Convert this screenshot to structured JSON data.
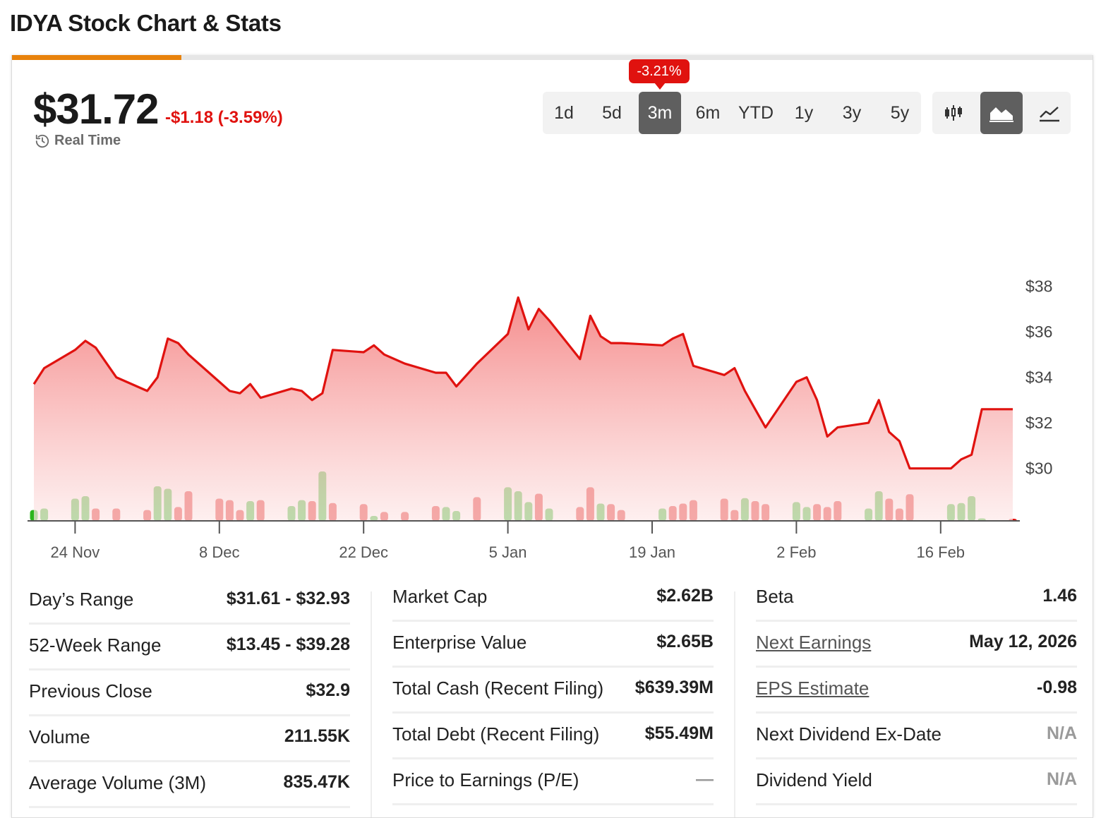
{
  "page_title": "IDYA Stock Chart & Stats",
  "quote": {
    "price": "$31.72",
    "change": "-$1.18 (-3.59%)",
    "realtime_label": "Real Time",
    "period_change_badge": "-3.21%"
  },
  "ranges": [
    "1d",
    "5d",
    "3m",
    "6m",
    "YTD",
    "1y",
    "3y",
    "5y"
  ],
  "active_range": "3m",
  "chart_types": [
    "candlestick-icon",
    "area-chart-icon",
    "line-chart-icon"
  ],
  "active_chart_type": "area-chart-icon",
  "colors": {
    "line": "#e0120f",
    "up": "#2bb51d",
    "down": "#e0120f",
    "accent": "#e8820c"
  },
  "chart_data": {
    "type": "area",
    "title": "",
    "xlabel": "",
    "ylabel": "",
    "ylim": [
      27.7,
      38.6
    ],
    "y_ticks": [
      "$38",
      "$36",
      "$34",
      "$32",
      "$30"
    ],
    "y_tick_values": [
      38,
      36,
      34,
      32,
      30
    ],
    "x_tick_labels": [
      "24 Nov",
      "8 Dec",
      "22 Dec",
      "5 Jan",
      "19 Jan",
      "2 Feb",
      "16 Feb"
    ],
    "x_tick_dates": [
      "2025-11-24",
      "2025-12-08",
      "2025-12-22",
      "2026-01-05",
      "2026-01-19",
      "2026-02-02",
      "2026-02-16"
    ],
    "series": [
      {
        "points": [
          [
            "2025-11-20",
            33.7
          ],
          [
            "2025-11-21",
            34.4
          ],
          [
            "2025-11-24",
            35.2
          ],
          [
            "2025-11-25",
            35.6
          ],
          [
            "2025-11-26",
            35.3
          ],
          [
            "2025-11-28",
            34.0
          ],
          [
            "2025-12-01",
            33.4
          ],
          [
            "2025-12-02",
            34.0
          ],
          [
            "2025-12-03",
            35.7
          ],
          [
            "2025-12-04",
            35.5
          ],
          [
            "2025-12-05",
            35.0
          ],
          [
            "2025-12-08",
            33.8
          ],
          [
            "2025-12-09",
            33.4
          ],
          [
            "2025-12-10",
            33.3
          ],
          [
            "2025-12-11",
            33.7
          ],
          [
            "2025-12-12",
            33.1
          ],
          [
            "2025-12-15",
            33.5
          ],
          [
            "2025-12-16",
            33.4
          ],
          [
            "2025-12-17",
            33.0
          ],
          [
            "2025-12-18",
            33.3
          ],
          [
            "2025-12-19",
            35.2
          ],
          [
            "2025-12-22",
            35.1
          ],
          [
            "2025-12-23",
            35.4
          ],
          [
            "2025-12-24",
            35.0
          ],
          [
            "2025-12-26",
            34.6
          ],
          [
            "2025-12-29",
            34.2
          ],
          [
            "2025-12-30",
            34.2
          ],
          [
            "2025-12-31",
            33.6
          ],
          [
            "2026-01-02",
            34.6
          ],
          [
            "2026-01-05",
            35.9
          ],
          [
            "2026-01-06",
            37.5
          ],
          [
            "2026-01-07",
            36.1
          ],
          [
            "2026-01-08",
            37.0
          ],
          [
            "2026-01-09",
            36.5
          ],
          [
            "2026-01-12",
            34.8
          ],
          [
            "2026-01-13",
            36.7
          ],
          [
            "2026-01-14",
            35.8
          ],
          [
            "2026-01-15",
            35.5
          ],
          [
            "2026-01-16",
            35.5
          ],
          [
            "2026-01-20",
            35.4
          ],
          [
            "2026-01-21",
            35.7
          ],
          [
            "2026-01-22",
            35.9
          ],
          [
            "2026-01-23",
            34.5
          ],
          [
            "2026-01-26",
            34.1
          ],
          [
            "2026-01-27",
            34.4
          ],
          [
            "2026-01-28",
            33.4
          ],
          [
            "2026-01-29",
            32.6
          ],
          [
            "2026-01-30",
            31.8
          ],
          [
            "2026-02-02",
            33.8
          ],
          [
            "2026-02-03",
            34.0
          ],
          [
            "2026-02-04",
            33.0
          ],
          [
            "2026-02-05",
            31.4
          ],
          [
            "2026-02-06",
            31.8
          ],
          [
            "2026-02-09",
            32.0
          ],
          [
            "2026-02-10",
            33.0
          ],
          [
            "2026-02-11",
            31.6
          ],
          [
            "2026-02-12",
            31.2
          ],
          [
            "2026-02-13",
            30.0
          ],
          [
            "2026-02-17",
            30.0
          ],
          [
            "2026-02-18",
            30.4
          ],
          [
            "2026-02-19",
            30.6
          ],
          [
            "2026-02-20",
            32.6
          ],
          [
            "2026-02-23",
            32.6
          ]
        ]
      }
    ],
    "volume_direction": [
      "up",
      "up",
      "up",
      "up",
      "down",
      "down",
      "down",
      "up",
      "up",
      "down",
      "down",
      "down",
      "down",
      "down",
      "up",
      "down",
      "up",
      "up",
      "down",
      "up",
      "down",
      "down",
      "up",
      "down",
      "down",
      "down",
      "up",
      "up",
      "down",
      "up",
      "up",
      "up",
      "down",
      "up",
      "down",
      "down",
      "up",
      "down",
      "down",
      "up",
      "down",
      "down",
      "down",
      "down",
      "down",
      "up",
      "down",
      "down",
      "up",
      "up",
      "down",
      "down",
      "down",
      "up",
      "up",
      "down",
      "down",
      "down",
      "up",
      "up",
      "up",
      "up",
      "down"
    ],
    "volume_relative": [
      0.22,
      0.25,
      0.45,
      0.5,
      0.25,
      0.25,
      0.22,
      0.7,
      0.65,
      0.28,
      0.6,
      0.45,
      0.42,
      0.22,
      0.4,
      0.42,
      0.3,
      0.42,
      0.4,
      1.0,
      0.36,
      0.34,
      0.1,
      0.18,
      0.18,
      0.3,
      0.28,
      0.2,
      0.48,
      0.68,
      0.6,
      0.38,
      0.55,
      0.25,
      0.28,
      0.68,
      0.35,
      0.34,
      0.22,
      0.25,
      0.3,
      0.35,
      0.42,
      0.45,
      0.22,
      0.46,
      0.4,
      0.34,
      0.38,
      0.28,
      0.34,
      0.28,
      0.4,
      0.25,
      0.6,
      0.45,
      0.25,
      0.54,
      0.34,
      0.36,
      0.5,
      0.05,
      0.03
    ]
  },
  "stats": {
    "col1": [
      {
        "label": "Day’s Range",
        "value": "$31.61 - $32.93"
      },
      {
        "label": "52-Week Range",
        "value": "$13.45 - $39.28"
      },
      {
        "label": "Previous Close",
        "value": "$32.9"
      },
      {
        "label": "Volume",
        "value": "211.55K"
      },
      {
        "label": "Average Volume (3M)",
        "value": "835.47K"
      }
    ],
    "col2": [
      {
        "label": "Market Cap",
        "value": "$2.62B"
      },
      {
        "label": "Enterprise Value",
        "value": "$2.65B"
      },
      {
        "label": "Total Cash (Recent Filing)",
        "value": "$639.39M"
      },
      {
        "label": "Total Debt (Recent Filing)",
        "value": "$55.49M"
      },
      {
        "label": "Price to Earnings (P/E)",
        "value": "—"
      }
    ],
    "col3": [
      {
        "label": "Beta",
        "value": "1.46"
      },
      {
        "label": "Next Earnings",
        "value": "May 12, 2026"
      },
      {
        "label": "EPS Estimate",
        "value": "-0.98"
      },
      {
        "label": "Next Dividend Ex-Date",
        "value": "N/A"
      },
      {
        "label": "Dividend Yield",
        "value": "N/A"
      }
    ]
  }
}
